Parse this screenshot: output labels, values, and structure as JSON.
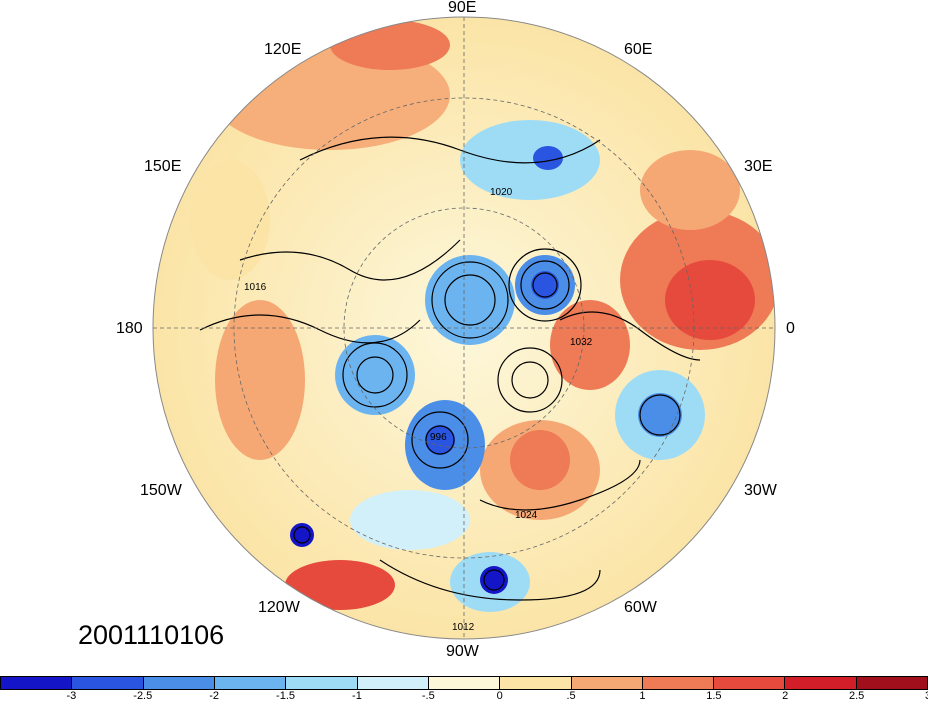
{
  "map": {
    "projection": "north-polar-stereographic",
    "timestamp": "2001110106",
    "longitude_labels": [
      {
        "id": "lon-90e",
        "text": "90E"
      },
      {
        "id": "lon-120e",
        "text": "120E"
      },
      {
        "id": "lon-60e",
        "text": "60E"
      },
      {
        "id": "lon-150e",
        "text": "150E"
      },
      {
        "id": "lon-30e",
        "text": "30E"
      },
      {
        "id": "lon-180",
        "text": "180"
      },
      {
        "id": "lon-0",
        "text": "0"
      },
      {
        "id": "lon-150w",
        "text": "150W"
      },
      {
        "id": "lon-30w",
        "text": "30W"
      },
      {
        "id": "lon-120w",
        "text": "120W"
      },
      {
        "id": "lon-60w",
        "text": "60W"
      },
      {
        "id": "lon-90w",
        "text": "90W"
      }
    ],
    "contour_labels": [
      "1012",
      "1016",
      "1020",
      "1024",
      "1032",
      "996"
    ],
    "colorbar": {
      "colors": [
        "#1515c8",
        "#2a55e0",
        "#4a8ee8",
        "#6cb4f0",
        "#9edcf6",
        "#d2f0fa",
        "#fdf7da",
        "#fbe4a6",
        "#f5a874",
        "#ee7a56",
        "#e64a3c",
        "#d21e28",
        "#a0101c"
      ],
      "ticks": [
        "-3",
        "-2.5",
        "-2",
        "-1.5",
        "-1",
        "-.5",
        "0",
        ".5",
        "1",
        "1.5",
        "2",
        "2.5",
        "3"
      ]
    }
  }
}
